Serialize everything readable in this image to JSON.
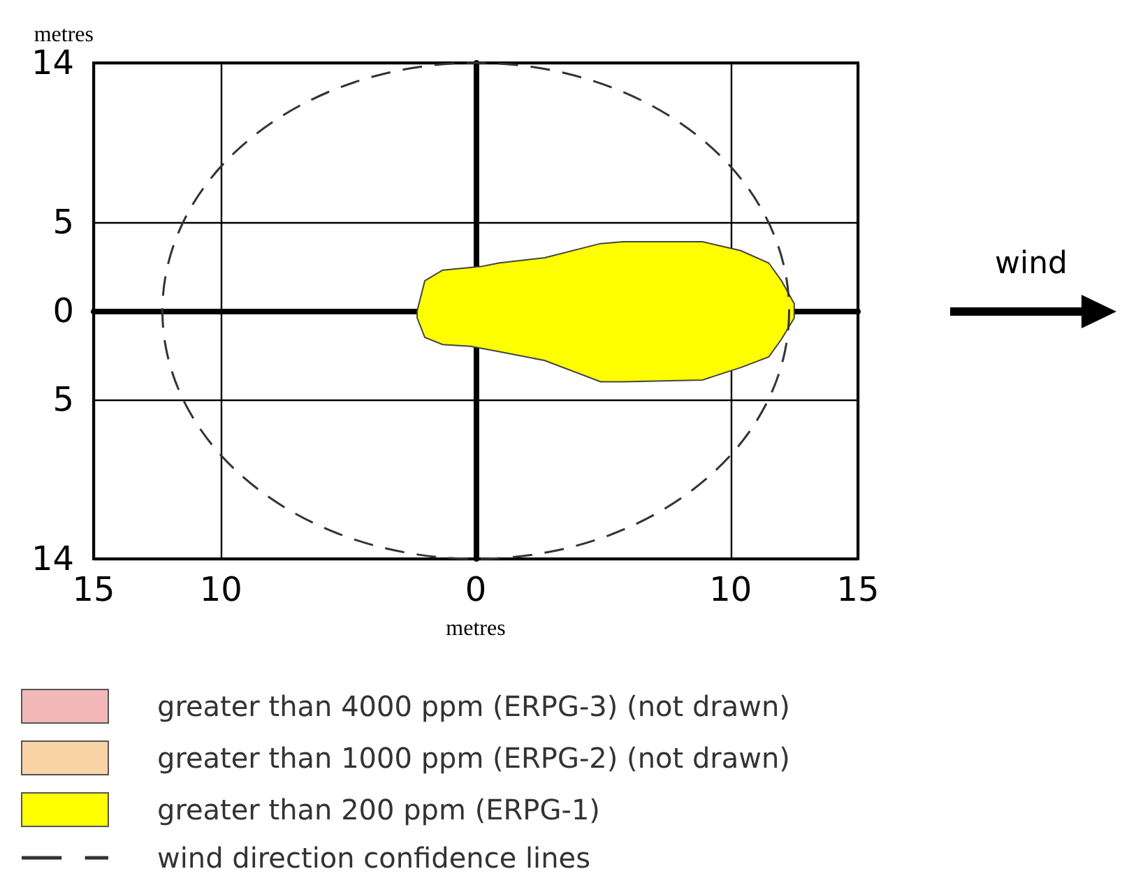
{
  "chart_data": {
    "type": "area",
    "xlabel": "metres",
    "ylabel": "metres",
    "annotations": [
      "wind"
    ],
    "xlim": [
      -15,
      15
    ],
    "xticks": [
      {
        "value": -15,
        "label": "15"
      },
      {
        "value": -10,
        "label": "10"
      },
      0,
      10,
      15
    ],
    "ylim": [
      -14,
      14
    ],
    "yticks": [
      {
        "value": -14,
        "label": "14"
      },
      {
        "value": -5,
        "label": "5"
      },
      0,
      5,
      14
    ],
    "grid": true,
    "legend": "bottom left",
    "series": [
      {
        "name": "greater than 4000 ppm (ERPG-3) (not drawn)",
        "color": "#f2b8b8"
      },
      {
        "name": "greater than 1000 ppm (ERPG-2) (not drawn)",
        "color": "#f7d3a6"
      },
      {
        "name": "greater than 200 ppm (ERPG-1)",
        "color": "#ffff00",
        "x": [
          -2.3,
          -2.0,
          -1.3,
          0.2,
          0.9,
          2.7,
          4.9,
          5.8,
          8.9,
          10.4,
          11.5,
          12.0,
          12.5,
          12.5,
          12.0,
          11.5,
          10.4,
          8.9,
          5.8,
          4.9,
          2.7,
          0.9,
          -0.2,
          -1.3,
          -2.0,
          -2.3
        ],
        "values": [
          0,
          1.7,
          2.3,
          2.5,
          2.7,
          3.0,
          3.8,
          3.9,
          3.9,
          3.4,
          2.7,
          1.7,
          0.4,
          -0.4,
          -1.6,
          -2.6,
          -3.2,
          -3.9,
          -4.0,
          -4.0,
          -2.8,
          -2.3,
          -2.0,
          -1.9,
          -1.5,
          -0.4
        ]
      },
      {
        "name": "wind direction confidence lines",
        "type": "line",
        "line_style": "dashed",
        "color": "#333333"
      }
    ]
  }
}
